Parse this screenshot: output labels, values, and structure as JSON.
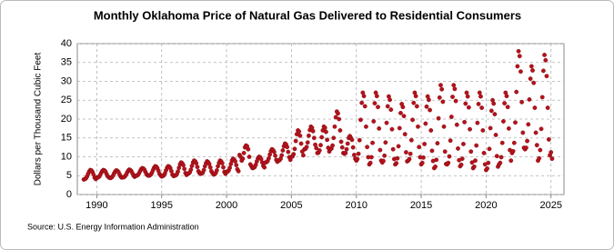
{
  "chart_data": {
    "type": "scatter",
    "title": "Monthly Oklahoma Price of Natural Gas Delivered to Residential Consumers",
    "y_label": "Dollars per Thousand Cubic Feet",
    "source": "Source: U.S. Energy Information Administration",
    "color": "#b5121b",
    "grid": true,
    "xlim": [
      "1988-07",
      "2026-01"
    ],
    "xticks": [
      "1990",
      "1995",
      "2000",
      "2005",
      "2010",
      "2015",
      "2020",
      "2025"
    ],
    "ylim": [
      0,
      40
    ],
    "yticks": [
      0,
      5,
      10,
      15,
      20,
      25,
      30,
      35,
      40
    ],
    "x": [
      "1989-01",
      "1989-02",
      "1989-03",
      "1989-04",
      "1989-05",
      "1989-06",
      "1989-07",
      "1989-08",
      "1989-09",
      "1989-10",
      "1989-11",
      "1989-12",
      "1990-01",
      "1990-02",
      "1990-03",
      "1990-04",
      "1990-05",
      "1990-06",
      "1990-07",
      "1990-08",
      "1990-09",
      "1990-10",
      "1990-11",
      "1990-12",
      "1991-01",
      "1991-02",
      "1991-03",
      "1991-04",
      "1991-05",
      "1991-06",
      "1991-07",
      "1991-08",
      "1991-09",
      "1991-10",
      "1991-11",
      "1991-12",
      "1992-01",
      "1992-02",
      "1992-03",
      "1992-04",
      "1992-05",
      "1992-06",
      "1992-07",
      "1992-08",
      "1992-09",
      "1992-10",
      "1992-11",
      "1992-12",
      "1993-01",
      "1993-02",
      "1993-03",
      "1993-04",
      "1993-05",
      "1993-06",
      "1993-07",
      "1993-08",
      "1993-09",
      "1993-10",
      "1993-11",
      "1993-12",
      "1994-01",
      "1994-02",
      "1994-03",
      "1994-04",
      "1994-05",
      "1994-06",
      "1994-07",
      "1994-08",
      "1994-09",
      "1994-10",
      "1994-11",
      "1994-12",
      "1995-01",
      "1995-02",
      "1995-03",
      "1995-04",
      "1995-05",
      "1995-06",
      "1995-07",
      "1995-08",
      "1995-09",
      "1995-10",
      "1995-11",
      "1995-12",
      "1996-01",
      "1996-02",
      "1996-03",
      "1996-04",
      "1996-05",
      "1996-06",
      "1996-07",
      "1996-08",
      "1996-09",
      "1996-10",
      "1996-11",
      "1996-12",
      "1997-01",
      "1997-02",
      "1997-03",
      "1997-04",
      "1997-05",
      "1997-06",
      "1997-07",
      "1997-08",
      "1997-09",
      "1997-10",
      "1997-11",
      "1997-12",
      "1998-01",
      "1998-02",
      "1998-03",
      "1998-04",
      "1998-05",
      "1998-06",
      "1998-07",
      "1998-08",
      "1998-09",
      "1998-10",
      "1998-11",
      "1998-12",
      "1999-01",
      "1999-02",
      "1999-03",
      "1999-04",
      "1999-05",
      "1999-06",
      "1999-07",
      "1999-08",
      "1999-09",
      "1999-10",
      "1999-11",
      "1999-12",
      "2000-01",
      "2000-02",
      "2000-03",
      "2000-04",
      "2000-05",
      "2000-06",
      "2000-07",
      "2000-08",
      "2000-09",
      "2000-10",
      "2000-11",
      "2000-12",
      "2001-01",
      "2001-02",
      "2001-03",
      "2001-04",
      "2001-05",
      "2001-06",
      "2001-07",
      "2001-08",
      "2001-09",
      "2001-10",
      "2001-11",
      "2001-12",
      "2002-01",
      "2002-02",
      "2002-03",
      "2002-04",
      "2002-05",
      "2002-06",
      "2002-07",
      "2002-08",
      "2002-09",
      "2002-10",
      "2002-11",
      "2002-12",
      "2003-01",
      "2003-02",
      "2003-03",
      "2003-04",
      "2003-05",
      "2003-06",
      "2003-07",
      "2003-08",
      "2003-09",
      "2003-10",
      "2003-11",
      "2003-12",
      "2004-01",
      "2004-02",
      "2004-03",
      "2004-04",
      "2004-05",
      "2004-06",
      "2004-07",
      "2004-08",
      "2004-09",
      "2004-10",
      "2004-11",
      "2004-12",
      "2005-01",
      "2005-02",
      "2005-03",
      "2005-04",
      "2005-05",
      "2005-06",
      "2005-07",
      "2005-08",
      "2005-09",
      "2005-10",
      "2005-11",
      "2005-12",
      "2006-01",
      "2006-02",
      "2006-03",
      "2006-04",
      "2006-05",
      "2006-06",
      "2006-07",
      "2006-08",
      "2006-09",
      "2006-10",
      "2006-11",
      "2006-12",
      "2007-01",
      "2007-02",
      "2007-03",
      "2007-04",
      "2007-05",
      "2007-06",
      "2007-07",
      "2007-08",
      "2007-09",
      "2007-10",
      "2007-11",
      "2007-12",
      "2008-01",
      "2008-02",
      "2008-03",
      "2008-04",
      "2008-05",
      "2008-06",
      "2008-07",
      "2008-08",
      "2008-09",
      "2008-10",
      "2008-11",
      "2008-12",
      "2009-01",
      "2009-02",
      "2009-03",
      "2009-04",
      "2009-05",
      "2009-06",
      "2009-07",
      "2009-08",
      "2009-09",
      "2009-10",
      "2009-11",
      "2009-12",
      "2010-01",
      "2010-02",
      "2010-03",
      "2010-04",
      "2010-05",
      "2010-06",
      "2010-07",
      "2010-08",
      "2010-09",
      "2010-10",
      "2010-11",
      "2010-12",
      "2011-01",
      "2011-02",
      "2011-03",
      "2011-04",
      "2011-05",
      "2011-06",
      "2011-07",
      "2011-08",
      "2011-09",
      "2011-10",
      "2011-11",
      "2011-12",
      "2012-01",
      "2012-02",
      "2012-03",
      "2012-04",
      "2012-05",
      "2012-06",
      "2012-07",
      "2012-08",
      "2012-09",
      "2012-10",
      "2012-11",
      "2012-12",
      "2013-01",
      "2013-02",
      "2013-03",
      "2013-04",
      "2013-05",
      "2013-06",
      "2013-07",
      "2013-08",
      "2013-09",
      "2013-10",
      "2013-11",
      "2013-12",
      "2014-01",
      "2014-02",
      "2014-03",
      "2014-04",
      "2014-05",
      "2014-06",
      "2014-07",
      "2014-08",
      "2014-09",
      "2014-10",
      "2014-11",
      "2014-12",
      "2015-01",
      "2015-02",
      "2015-03",
      "2015-04",
      "2015-05",
      "2015-06",
      "2015-07",
      "2015-08",
      "2015-09",
      "2015-10",
      "2015-11",
      "2015-12",
      "2016-01",
      "2016-02",
      "2016-03",
      "2016-04",
      "2016-05",
      "2016-06",
      "2016-07",
      "2016-08",
      "2016-09",
      "2016-10",
      "2016-11",
      "2016-12",
      "2017-01",
      "2017-02",
      "2017-03",
      "2017-04",
      "2017-05",
      "2017-06",
      "2017-07",
      "2017-08",
      "2017-09",
      "2017-10",
      "2017-11",
      "2017-12",
      "2018-01",
      "2018-02",
      "2018-03",
      "2018-04",
      "2018-05",
      "2018-06",
      "2018-07",
      "2018-08",
      "2018-09",
      "2018-10",
      "2018-11",
      "2018-12",
      "2019-01",
      "2019-02",
      "2019-03",
      "2019-04",
      "2019-05",
      "2019-06",
      "2019-07",
      "2019-08",
      "2019-09",
      "2019-10",
      "2019-11",
      "2019-12",
      "2020-01",
      "2020-02",
      "2020-03",
      "2020-04",
      "2020-05",
      "2020-06",
      "2020-07",
      "2020-08",
      "2020-09",
      "2020-10",
      "2020-11",
      "2020-12",
      "2021-01",
      "2021-02",
      "2021-03",
      "2021-04",
      "2021-05",
      "2021-06",
      "2021-07",
      "2021-08",
      "2021-09",
      "2021-10",
      "2021-11",
      "2021-12",
      "2022-01",
      "2022-02",
      "2022-03",
      "2022-04",
      "2022-05",
      "2022-06",
      "2022-07",
      "2022-08",
      "2022-09",
      "2022-10",
      "2022-11",
      "2022-12",
      "2023-01",
      "2023-02",
      "2023-03",
      "2023-04",
      "2023-05",
      "2023-06",
      "2023-07",
      "2023-08",
      "2023-09",
      "2023-10",
      "2023-11",
      "2023-12",
      "2024-01",
      "2024-02",
      "2024-03",
      "2024-04",
      "2024-05",
      "2024-06",
      "2024-07",
      "2024-08",
      "2024-09",
      "2024-10",
      "2024-11",
      "2024-12",
      "2025-01",
      "2025-02"
    ],
    "values": [
      4.0,
      4.1,
      4.3,
      4.8,
      5.5,
      6.1,
      6.5,
      6.4,
      6.0,
      5.3,
      4.5,
      4.1,
      4.5,
      4.5,
      4.7,
      5.1,
      5.7,
      6.2,
      6.5,
      6.4,
      6.1,
      5.5,
      4.9,
      4.6,
      4.4,
      4.4,
      4.6,
      5.0,
      5.6,
      6.1,
      6.4,
      6.3,
      6.0,
      5.4,
      4.8,
      4.5,
      4.6,
      4.6,
      4.8,
      5.2,
      5.8,
      6.3,
      6.6,
      6.5,
      6.2,
      5.6,
      5.0,
      4.7,
      5.0,
      5.0,
      5.2,
      5.6,
      6.2,
      6.7,
      7.0,
      6.9,
      6.6,
      6.0,
      5.4,
      5.1,
      5.0,
      5.1,
      5.3,
      5.8,
      6.5,
      7.1,
      7.5,
      7.4,
      7.0,
      6.3,
      5.5,
      5.1,
      4.8,
      4.9,
      5.1,
      5.6,
      6.4,
      7.1,
      7.5,
      7.4,
      7.0,
      6.2,
      5.3,
      4.9,
      5.0,
      5.1,
      5.4,
      6.1,
      7.1,
      8.0,
      8.5,
      8.3,
      7.8,
      6.8,
      5.7,
      5.2,
      5.5,
      5.6,
      5.9,
      6.6,
      7.6,
      8.5,
      9.0,
      8.8,
      8.3,
      7.3,
      6.2,
      5.7,
      5.5,
      5.6,
      5.8,
      6.5,
      7.5,
      8.3,
      8.8,
      8.6,
      8.1,
      7.2,
      6.2,
      5.7,
      5.3,
      5.4,
      5.7,
      6.4,
      7.5,
      8.4,
      9.0,
      8.8,
      8.3,
      7.2,
      6.0,
      5.5,
      6.0,
      6.1,
      6.4,
      7.1,
      8.1,
      9.0,
      9.5,
      9.3,
      8.8,
      7.8,
      6.7,
      6.2,
      10.5,
      10.0,
      9.0,
      9.5,
      11.0,
      12.5,
      13.0,
      12.8,
      12.0,
      10.0,
      8.0,
      7.5,
      7.0,
      7.1,
      7.3,
      7.9,
      8.8,
      9.6,
      10.0,
      9.9,
      9.4,
      8.5,
      7.6,
      7.2,
      8.5,
      8.6,
      8.9,
      9.6,
      10.6,
      11.5,
      12.0,
      11.8,
      11.3,
      10.3,
      9.2,
      8.7,
      9.0,
      9.1,
      9.5,
      10.4,
      11.7,
      12.8,
      13.5,
      13.3,
      12.6,
      11.3,
      9.9,
      9.2,
      10.0,
      10.1,
      10.7,
      12.1,
      14.2,
      16.0,
      17.0,
      16.7,
      15.6,
      13.5,
      11.4,
      10.4,
      12.0,
      12.1,
      12.6,
      13.8,
      15.6,
      17.1,
      18.0,
      17.7,
      16.8,
      15.0,
      13.2,
      12.3,
      11.0,
      11.1,
      11.7,
      13.1,
      15.2,
      17.0,
      18.0,
      17.7,
      16.6,
      14.5,
      12.4,
      11.4,
      12.0,
      12.2,
      13.0,
      15.0,
      18.0,
      20.5,
      22.0,
      21.5,
      20.0,
      17.0,
      14.0,
      12.5,
      11.0,
      10.8,
      11.0,
      12.0,
      13.5,
      15.0,
      15.5,
      15.0,
      14.5,
      12.5,
      10.5,
      9.5,
      9.0,
      9.4,
      10.8,
      14.4,
      19.8,
      24.3,
      27.0,
      26.1,
      23.4,
      18.0,
      12.6,
      9.9,
      8.0,
      8.4,
      9.9,
      13.7,
      19.4,
      24.2,
      27.0,
      26.1,
      23.2,
      17.5,
      11.8,
      9.0,
      8.5,
      8.9,
      10.3,
      13.8,
      19.0,
      23.4,
      26.0,
      25.1,
      22.5,
      17.3,
      12.0,
      9.4,
      8.0,
      8.3,
      9.6,
      12.8,
      17.6,
      21.6,
      24.0,
      23.2,
      20.8,
      16.0,
      11.2,
      8.8,
      9.0,
      9.4,
      10.8,
      14.4,
      19.8,
      24.3,
      27.0,
      26.1,
      23.4,
      18.0,
      12.6,
      9.9,
      8.0,
      8.4,
      9.8,
      13.4,
      18.8,
      23.3,
      26.0,
      25.1,
      22.4,
      17.0,
      11.6,
      8.9,
      7.0,
      7.4,
      9.2,
      13.6,
      20.2,
      25.7,
      29.0,
      27.9,
      24.6,
      18.0,
      11.4,
      8.1,
      8.0,
      8.4,
      10.1,
      14.3,
      20.6,
      25.9,
      29.0,
      28.0,
      24.8,
      18.5,
      12.2,
      9.1,
      7.5,
      7.9,
      9.5,
      13.4,
      19.2,
      24.1,
      27.0,
      26.0,
      23.1,
      17.3,
      11.4,
      8.5,
      7.0,
      7.4,
      9.0,
      13.0,
      19.0,
      24.0,
      27.0,
      26.0,
      23.0,
      17.0,
      11.0,
      8.0,
      6.5,
      6.9,
      8.4,
      12.1,
      17.6,
      22.2,
      25.0,
      24.1,
      21.3,
      15.8,
      10.2,
      7.4,
      8.0,
      8.4,
      9.9,
      13.7,
      19.4,
      24.2,
      27.0,
      26.1,
      23.2,
      17.5,
      11.8,
      9.0,
      11.0,
      11.5,
      13.7,
      19.1,
      27.2,
      34.0,
      38.0,
      36.7,
      32.6,
      24.5,
      16.4,
      12.4,
      12.0,
      12.4,
      14.2,
      18.6,
      25.2,
      30.7,
      34.0,
      32.9,
      29.6,
      23.0,
      16.4,
      13.1,
      9.0,
      9.6,
      11.8,
      17.4,
      25.8,
      32.8,
      37.0,
      35.6,
      31.4,
      23.0,
      14.6,
      10.4,
      11.2,
      9.5
    ]
  }
}
